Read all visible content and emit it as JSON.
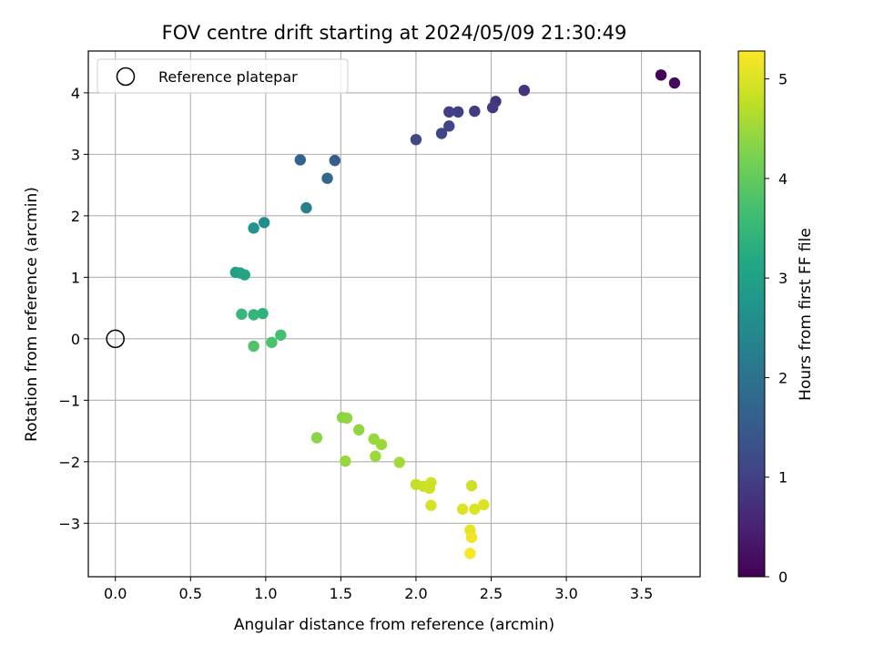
{
  "chart_data": {
    "type": "scatter",
    "title": "FOV centre drift starting at 2024/05/09 21:30:49",
    "xlabel": "Angular distance from reference (arcmin)",
    "ylabel": "Rotation from reference (arcmin)",
    "xlim": [
      -0.18,
      3.89
    ],
    "ylim": [
      -3.87,
      4.68
    ],
    "xticks": [
      0.0,
      0.5,
      1.0,
      1.5,
      2.0,
      2.5,
      3.0,
      3.5
    ],
    "xtick_labels": [
      "0.0",
      "0.5",
      "1.0",
      "1.5",
      "2.0",
      "2.5",
      "3.0",
      "3.5"
    ],
    "yticks": [
      -3,
      -2,
      -1,
      0,
      1,
      2,
      3,
      4
    ],
    "ytick_labels": [
      "−3",
      "−2",
      "−1",
      "0",
      "1",
      "2",
      "3",
      "4"
    ],
    "grid": true,
    "legend": {
      "placement": "top-left",
      "entries": [
        "Reference platepar"
      ]
    },
    "reference_point": {
      "x": 0.0,
      "y": 0.0,
      "label": "Reference platepar"
    },
    "colorbar": {
      "label": "Hours from first FF file",
      "colormap": "viridis",
      "range": [
        0,
        5.28
      ],
      "ticks": [
        0,
        1,
        2,
        3,
        4,
        5
      ],
      "tick_labels": [
        "0",
        "1",
        "2",
        "3",
        "4",
        "5"
      ]
    },
    "points": [
      {
        "x": 3.63,
        "y": 4.29,
        "c": 0.05
      },
      {
        "x": 3.72,
        "y": 4.16,
        "c": 0.15
      },
      {
        "x": 2.72,
        "y": 4.04,
        "c": 0.75
      },
      {
        "x": 2.53,
        "y": 3.86,
        "c": 0.8
      },
      {
        "x": 2.51,
        "y": 3.76,
        "c": 0.85
      },
      {
        "x": 2.39,
        "y": 3.7,
        "c": 0.9
      },
      {
        "x": 2.28,
        "y": 3.69,
        "c": 0.95
      },
      {
        "x": 2.22,
        "y": 3.69,
        "c": 1.0
      },
      {
        "x": 2.22,
        "y": 3.46,
        "c": 1.05
      },
      {
        "x": 2.17,
        "y": 3.34,
        "c": 1.1
      },
      {
        "x": 2.0,
        "y": 3.24,
        "c": 1.15
      },
      {
        "x": 1.46,
        "y": 2.9,
        "c": 1.55
      },
      {
        "x": 1.23,
        "y": 2.91,
        "c": 1.7
      },
      {
        "x": 1.41,
        "y": 2.61,
        "c": 1.8
      },
      {
        "x": 1.27,
        "y": 2.13,
        "c": 2.3
      },
      {
        "x": 0.99,
        "y": 1.89,
        "c": 2.6
      },
      {
        "x": 0.92,
        "y": 1.8,
        "c": 2.7
      },
      {
        "x": 0.8,
        "y": 1.08,
        "c": 3.0
      },
      {
        "x": 0.83,
        "y": 1.07,
        "c": 3.05
      },
      {
        "x": 0.86,
        "y": 1.04,
        "c": 3.1
      },
      {
        "x": 0.98,
        "y": 0.41,
        "c": 3.4
      },
      {
        "x": 0.92,
        "y": 0.39,
        "c": 3.45
      },
      {
        "x": 0.84,
        "y": 0.4,
        "c": 3.5
      },
      {
        "x": 1.1,
        "y": 0.06,
        "c": 3.7
      },
      {
        "x": 1.04,
        "y": -0.06,
        "c": 3.75
      },
      {
        "x": 0.92,
        "y": -0.12,
        "c": 3.8
      },
      {
        "x": 1.34,
        "y": -1.61,
        "c": 4.35
      },
      {
        "x": 1.51,
        "y": -1.28,
        "c": 4.35
      },
      {
        "x": 1.54,
        "y": -1.29,
        "c": 4.4
      },
      {
        "x": 1.62,
        "y": -1.48,
        "c": 4.4
      },
      {
        "x": 1.72,
        "y": -1.63,
        "c": 4.45
      },
      {
        "x": 1.77,
        "y": -1.72,
        "c": 4.5
      },
      {
        "x": 1.53,
        "y": -1.99,
        "c": 4.45
      },
      {
        "x": 1.73,
        "y": -1.91,
        "c": 4.5
      },
      {
        "x": 1.89,
        "y": -2.01,
        "c": 4.55
      },
      {
        "x": 2.0,
        "y": -2.37,
        "c": 4.8
      },
      {
        "x": 2.05,
        "y": -2.4,
        "c": 4.85
      },
      {
        "x": 2.09,
        "y": -2.43,
        "c": 4.9
      },
      {
        "x": 2.1,
        "y": -2.34,
        "c": 4.9
      },
      {
        "x": 2.1,
        "y": -2.71,
        "c": 4.95
      },
      {
        "x": 2.37,
        "y": -2.39,
        "c": 4.9
      },
      {
        "x": 2.31,
        "y": -2.77,
        "c": 5.0
      },
      {
        "x": 2.39,
        "y": -2.77,
        "c": 5.0
      },
      {
        "x": 2.45,
        "y": -2.7,
        "c": 5.0
      },
      {
        "x": 2.36,
        "y": -3.11,
        "c": 5.1
      },
      {
        "x": 2.37,
        "y": -3.23,
        "c": 5.15
      },
      {
        "x": 2.36,
        "y": -3.49,
        "c": 5.25
      }
    ]
  }
}
